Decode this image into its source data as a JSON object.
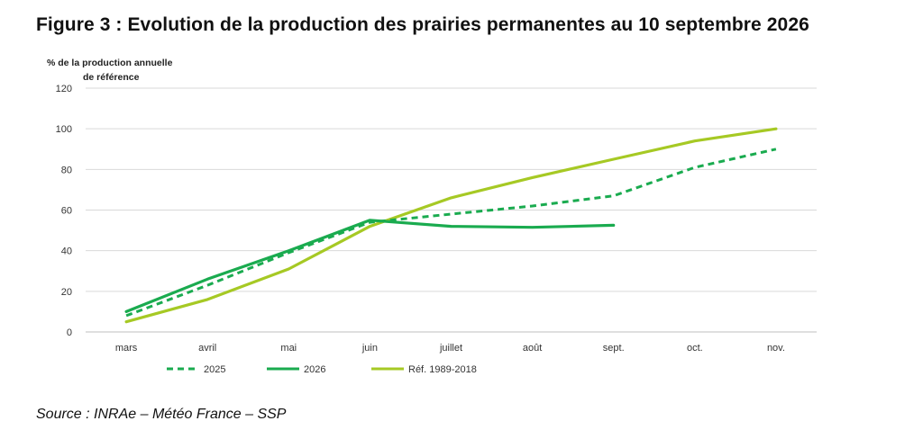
{
  "title": "Figure 3 : Evolution de la production des prairies permanentes au 10 septembre 2026",
  "source": "Source : INRAe – Météo France – SSP",
  "chart_data": {
    "type": "line",
    "ylabel_line1": "% de la production annuelle",
    "ylabel_line2": "de référence",
    "categories": [
      "mars",
      "avril",
      "mai",
      "juin",
      "juillet",
      "août",
      "sept.",
      "oct.",
      "nov."
    ],
    "ylim": [
      0,
      120
    ],
    "yticks": [
      0,
      20,
      40,
      60,
      80,
      100,
      120
    ],
    "grid": true,
    "legend_position": "bottom",
    "series": [
      {
        "name": "2025",
        "style": "dashed",
        "color": "#1aab4f",
        "values": [
          8,
          23,
          39,
          54,
          58,
          62,
          67,
          81,
          90
        ]
      },
      {
        "name": "2026",
        "style": "solid",
        "color": "#1aab4f",
        "values": [
          10,
          26,
          40,
          55,
          52,
          51.5,
          52.5,
          null,
          null
        ]
      },
      {
        "name": "Réf. 1989-2018",
        "style": "solid",
        "color": "#a6c924",
        "values": [
          5,
          16,
          31,
          52,
          66,
          76,
          85,
          94,
          100
        ]
      }
    ]
  }
}
